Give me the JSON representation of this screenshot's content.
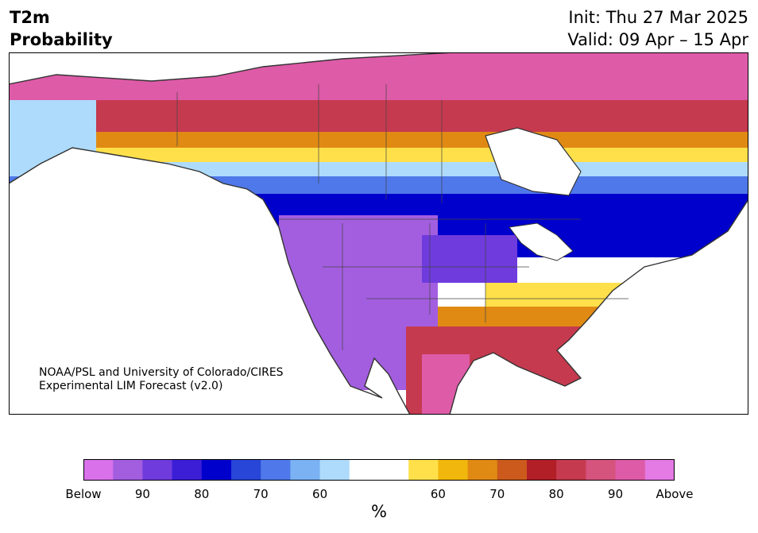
{
  "header": {
    "title_line1": "T2m",
    "title_line2": "Probability",
    "init": "Init: Thu 27 Mar 2025",
    "valid": "Valid: 09 Apr – 15 Apr"
  },
  "credit": {
    "line1": "NOAA/PSL and University of Colorado/CIRES",
    "line2": "Experimental LIM Forecast (v2.0)"
  },
  "colorbar": {
    "unit": "%",
    "tick_labels": [
      "Below",
      "90",
      "80",
      "70",
      "60",
      "60",
      "70",
      "80",
      "90",
      "Above"
    ],
    "colors": [
      "#d972ea",
      "#a35ee0",
      "#6f3bdd",
      "#3b1ed6",
      "#0000cd",
      "#2846d8",
      "#4f78ea",
      "#7ab2f4",
      "#aedbfb",
      "#ffffff",
      "#ffffff",
      "#ffe04a",
      "#f2b70c",
      "#e08a14",
      "#cc5a1c",
      "#b31f27",
      "#c63a4f",
      "#d5547e",
      "#de5ba8",
      "#e47ae4"
    ]
  },
  "map": {
    "region": "North America",
    "variable": "2-m temperature probability",
    "regions": [
      {
        "area": "Arctic Canada / Nunavut",
        "category": "Above",
        "level": 90
      },
      {
        "area": "Northern Canada / Yukon / NWT",
        "category": "Above",
        "level": 80
      },
      {
        "area": "Western Alaska",
        "category": "Below",
        "level": 60
      },
      {
        "area": "Southern Canada / Great Lakes / Northern US",
        "category": "Below",
        "level": 80
      },
      {
        "area": "Western US",
        "category": "Below",
        "level": 90
      },
      {
        "area": "Southern US / Texas",
        "category": "Above",
        "level": 80
      },
      {
        "area": "Northern Mexico",
        "category": "Above",
        "level": 90
      },
      {
        "area": "Labrador",
        "category": "Above",
        "level": 70
      }
    ]
  }
}
